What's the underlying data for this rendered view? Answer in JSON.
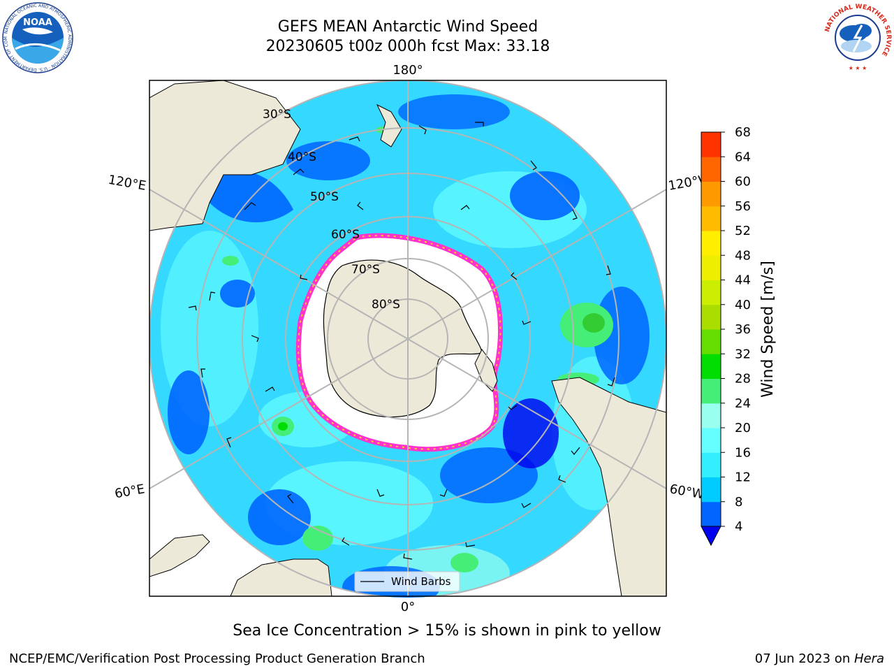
{
  "header": {
    "title": "GEFS MEAN Antarctic Wind Speed",
    "subtitle": "20230605 t00z 000h fcst   Max: 33.18"
  },
  "logos": {
    "noaa": {
      "text": "NOAA",
      "ring_text": "NATIONAL OCEANIC AND ATMOSPHERIC ADMINISTRATION · U.S. DEPARTMENT OF COMMERCE"
    },
    "nws": {
      "ring_text": "NATIONAL WEATHER SERVICE"
    }
  },
  "map": {
    "projection": "south-polar-stereographic",
    "longitude_labels": {
      "top": "180°",
      "bottom": "0°",
      "upper_left": "120°E",
      "lower_left": "60°E",
      "upper_right": "120°W",
      "lower_right": "60°W"
    },
    "latitude_labels": [
      "30°S",
      "40°S",
      "50°S",
      "60°S",
      "70°S",
      "80°S"
    ],
    "colors": {
      "land": "#ede9d8",
      "ice_edge": "#ff33cc",
      "ice_fill": "#ffffff",
      "ocean_base": "#35d8ff",
      "graticule": "#b5b5b5"
    },
    "legend": {
      "label": "Wind Barbs"
    }
  },
  "colorbar": {
    "label": "Wind Speed [m/s]",
    "ticks": [
      "4",
      "8",
      "12",
      "16",
      "20",
      "24",
      "28",
      "32",
      "36",
      "40",
      "44",
      "48",
      "52",
      "56",
      "60",
      "64",
      "68"
    ],
    "colors": [
      "#0066ff",
      "#00ccff",
      "#33eeff",
      "#66ffff",
      "#99ffee",
      "#44ee77",
      "#00dd00",
      "#66dd00",
      "#aadd00",
      "#ccee00",
      "#eeee00",
      "#ffee00",
      "#ffbb00",
      "#ff9900",
      "#ff6600",
      "#ff3300",
      "#ff0000"
    ],
    "under_color": "#0000ee"
  },
  "caption": "Sea Ice Concentration > 15% is shown in pink to yellow",
  "footer": {
    "left": "NCEP/EMC/Verification Post Processing Product Generation Branch",
    "date": "07 Jun 2023 on ",
    "host": "Hera"
  }
}
